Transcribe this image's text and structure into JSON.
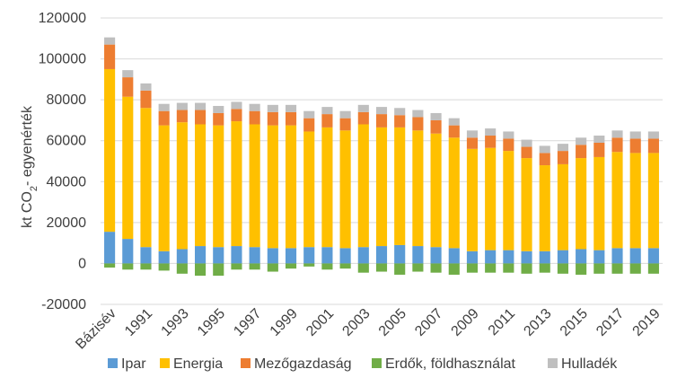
{
  "chart_data": {
    "type": "bar",
    "stacked": true,
    "ylabel": "kt CO₂- egyenérték",
    "ylim": [
      -20000,
      120000
    ],
    "yticks": [
      -20000,
      0,
      20000,
      40000,
      60000,
      80000,
      100000,
      120000
    ],
    "ytick_labels": [
      "-20000",
      "0",
      "20000",
      "40000",
      "60000",
      "80000",
      "100000",
      "120000"
    ],
    "grid": true,
    "legend_position": "bottom",
    "categories": [
      "Bázisév",
      "1990",
      "1991",
      "1992",
      "1993",
      "1994",
      "1995",
      "1996",
      "1997",
      "1998",
      "1999",
      "2000",
      "2001",
      "2002",
      "2003",
      "2004",
      "2005",
      "2006",
      "2007",
      "2008",
      "2009",
      "2010",
      "2011",
      "2012",
      "2013",
      "2014",
      "2015",
      "2016",
      "2017",
      "2018",
      "2019"
    ],
    "xtick_labels_shown": [
      "Bázisév",
      "1991",
      "1993",
      "1995",
      "1997",
      "1999",
      "2001",
      "2003",
      "2005",
      "2007",
      "2009",
      "2011",
      "2013",
      "2015",
      "2017",
      "2019"
    ],
    "series": [
      {
        "name": "Ipar",
        "color": "#5b9bd5",
        "values": [
          15500,
          12000,
          8000,
          6000,
          7000,
          8500,
          8000,
          8500,
          8000,
          7500,
          7500,
          8000,
          8000,
          7500,
          8000,
          8500,
          9000,
          8500,
          8000,
          7500,
          6000,
          6500,
          6500,
          6000,
          6000,
          6500,
          7000,
          6500,
          7500,
          7500,
          7500
        ]
      },
      {
        "name": "Energia",
        "color": "#ffc000",
        "values": [
          79500,
          69500,
          68000,
          61500,
          62000,
          59500,
          59500,
          61000,
          60000,
          60000,
          60000,
          56500,
          58500,
          57500,
          60000,
          58000,
          57500,
          56500,
          55500,
          54000,
          50000,
          50000,
          48500,
          45500,
          42000,
          42000,
          44500,
          45500,
          47000,
          46500,
          46500
        ]
      },
      {
        "name": "Mezőgazdaság",
        "color": "#ed7d31",
        "values": [
          12000,
          9500,
          8500,
          7000,
          6000,
          7000,
          6000,
          6000,
          6500,
          6500,
          6500,
          6500,
          6500,
          6000,
          6000,
          6500,
          6000,
          6500,
          6500,
          6000,
          5500,
          6000,
          6000,
          5500,
          6000,
          6500,
          6500,
          7000,
          7000,
          7000,
          7000
        ]
      },
      {
        "name": "Erdők, földhasználat",
        "color": "#70ad47",
        "values": [
          -2000,
          -3000,
          -3000,
          -3500,
          -5000,
          -6000,
          -6000,
          -3000,
          -3000,
          -4000,
          -2500,
          -1500,
          -3000,
          -2500,
          -4500,
          -4000,
          -5500,
          -4000,
          -4500,
          -5500,
          -4500,
          -4500,
          -4500,
          -5000,
          -4500,
          -5000,
          -5500,
          -5000,
          -5000,
          -5000,
          -5000
        ]
      },
      {
        "name": "Hulladék",
        "color": "#bfbfbf",
        "values": [
          3500,
          3500,
          3500,
          3500,
          3500,
          3500,
          3500,
          3500,
          3500,
          3500,
          3500,
          3500,
          3500,
          3500,
          3500,
          3500,
          3500,
          3500,
          3500,
          3500,
          3500,
          3500,
          3500,
          3500,
          3500,
          3500,
          3500,
          3500,
          3500,
          3500,
          3500
        ]
      }
    ]
  }
}
